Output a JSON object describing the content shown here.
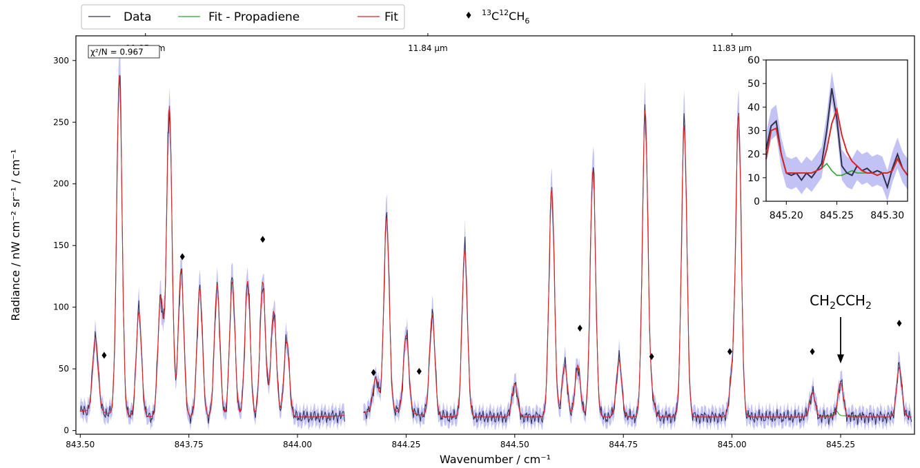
{
  "chart_data": {
    "type": "line",
    "title": "",
    "xlabel": "Wavenumber / cm⁻¹",
    "ylabel": "Radiance / nW cm⁻² sr⁻¹ / cm⁻¹",
    "xlim": [
      843.49,
      845.42
    ],
    "ylim": [
      -3,
      320
    ],
    "x_ticks": [
      843.5,
      843.75,
      844.0,
      844.25,
      844.5,
      844.75,
      845.0,
      845.25
    ],
    "x_tick_labels": [
      "843.50",
      "843.75",
      "844.00",
      "844.25",
      "844.50",
      "844.75",
      "845.00",
      "845.25"
    ],
    "y_ticks": [
      0,
      50,
      100,
      150,
      200,
      250,
      300
    ],
    "top_axis_labels": [
      {
        "x": 843.65,
        "label": "11.85 μm"
      },
      {
        "x": 844.3,
        "label": "11.84 μm"
      },
      {
        "x": 845.0,
        "label": "11.83 μm"
      }
    ],
    "chi2_label": "χ²/N = 0.967",
    "legend": {
      "placement": "top-left",
      "entries": [
        {
          "label": "Data",
          "color": "#2e2e4a"
        },
        {
          "label": "Fit - Propadiene",
          "color": "#2ca02c"
        },
        {
          "label": "Fit",
          "color": "#d62728"
        }
      ]
    },
    "marker_legend": {
      "label_parts": [
        "13",
        "C",
        "12",
        "CH",
        "6"
      ]
    },
    "colors": {
      "data": "#2e2e4a",
      "fit": "#d62728",
      "propadiene": "#2ca02c",
      "band": "#b3b3f2"
    },
    "peaks": [
      [
        843.535,
        60
      ],
      [
        843.59,
        276
      ],
      [
        843.635,
        85
      ],
      [
        843.685,
        97
      ],
      [
        843.705,
        252
      ],
      [
        843.732,
        120
      ],
      [
        843.775,
        105
      ],
      [
        843.815,
        107
      ],
      [
        843.85,
        110
      ],
      [
        843.885,
        110
      ],
      [
        843.92,
        110
      ],
      [
        843.945,
        86
      ],
      [
        843.975,
        62
      ],
      [
        844.18,
        27
      ],
      [
        844.205,
        157
      ],
      [
        844.25,
        63
      ],
      [
        844.31,
        82
      ],
      [
        844.385,
        136
      ],
      [
        844.5,
        27
      ],
      [
        844.585,
        186
      ],
      [
        844.615,
        42
      ],
      [
        844.645,
        42
      ],
      [
        844.68,
        201
      ],
      [
        844.74,
        46
      ],
      [
        844.8,
        248
      ],
      [
        844.815,
        17
      ],
      [
        844.89,
        237
      ],
      [
        845.0,
        30
      ],
      [
        845.015,
        245
      ],
      [
        845.185,
        20
      ],
      [
        845.25,
        28
      ],
      [
        845.385,
        40
      ]
    ],
    "marker_points": [
      [
        843.555,
        61
      ],
      [
        843.735,
        141
      ],
      [
        843.92,
        155
      ],
      [
        844.175,
        47
      ],
      [
        844.28,
        48
      ],
      [
        844.65,
        83
      ],
      [
        844.815,
        60
      ],
      [
        844.995,
        64
      ],
      [
        845.185,
        64
      ],
      [
        845.385,
        87
      ]
    ],
    "annotation": {
      "label_parts": [
        "CH",
        "2",
        "CCH",
        "2"
      ],
      "arrow_x": 845.25,
      "arrow_from_y": 92,
      "arrow_to_y": 55
    },
    "inset": {
      "xlim": [
        845.18,
        845.32
      ],
      "ylim": [
        0,
        60
      ],
      "x_ticks": [
        845.2,
        845.25,
        845.3
      ],
      "x_tick_labels": [
        "845.20",
        "845.25",
        "845.30"
      ],
      "y_ticks": [
        0,
        10,
        20,
        30,
        40,
        50,
        60
      ],
      "data": [
        [
          845.18,
          22
        ],
        [
          845.185,
          32
        ],
        [
          845.19,
          34
        ],
        [
          845.195,
          20
        ],
        [
          845.2,
          12
        ],
        [
          845.205,
          11
        ],
        [
          845.21,
          12
        ],
        [
          845.215,
          9
        ],
        [
          845.22,
          12
        ],
        [
          845.225,
          10
        ],
        [
          845.23,
          13
        ],
        [
          845.235,
          16
        ],
        [
          845.24,
          30
        ],
        [
          845.245,
          48
        ],
        [
          845.25,
          35
        ],
        [
          845.255,
          15
        ],
        [
          845.26,
          12
        ],
        [
          845.265,
          11
        ],
        [
          845.27,
          15
        ],
        [
          845.275,
          13
        ],
        [
          845.28,
          14
        ],
        [
          845.285,
          12
        ],
        [
          845.29,
          13
        ],
        [
          845.295,
          12
        ],
        [
          845.3,
          6
        ],
        [
          845.305,
          14
        ],
        [
          845.31,
          20
        ],
        [
          845.315,
          14
        ],
        [
          845.32,
          11
        ]
      ],
      "fit": [
        [
          845.18,
          18
        ],
        [
          845.185,
          30
        ],
        [
          845.19,
          31
        ],
        [
          845.195,
          20
        ],
        [
          845.2,
          12
        ],
        [
          845.205,
          12
        ],
        [
          845.21,
          12
        ],
        [
          845.215,
          12
        ],
        [
          845.22,
          12
        ],
        [
          845.225,
          12
        ],
        [
          845.23,
          13
        ],
        [
          845.235,
          14
        ],
        [
          845.24,
          22
        ],
        [
          845.245,
          33
        ],
        [
          845.25,
          39
        ],
        [
          845.255,
          28
        ],
        [
          845.26,
          21
        ],
        [
          845.265,
          17
        ],
        [
          845.27,
          15
        ],
        [
          845.275,
          13
        ],
        [
          845.28,
          12
        ],
        [
          845.285,
          12
        ],
        [
          845.29,
          11
        ],
        [
          845.295,
          12
        ],
        [
          845.3,
          12
        ],
        [
          845.305,
          13
        ],
        [
          845.31,
          18
        ],
        [
          845.315,
          14
        ],
        [
          845.32,
          11
        ]
      ],
      "propadiene": [
        [
          845.18,
          18
        ],
        [
          845.185,
          30
        ],
        [
          845.19,
          31
        ],
        [
          845.195,
          20
        ],
        [
          845.2,
          12
        ],
        [
          845.205,
          12
        ],
        [
          845.21,
          12
        ],
        [
          845.215,
          12
        ],
        [
          845.22,
          12
        ],
        [
          845.225,
          12
        ],
        [
          845.23,
          13
        ],
        [
          845.235,
          14
        ],
        [
          845.24,
          16
        ],
        [
          845.245,
          13
        ],
        [
          845.25,
          11
        ],
        [
          845.255,
          11
        ],
        [
          845.26,
          12
        ],
        [
          845.265,
          13
        ],
        [
          845.27,
          12
        ],
        [
          845.275,
          12
        ],
        [
          845.28,
          12
        ],
        [
          845.285,
          12
        ],
        [
          845.29,
          11
        ],
        [
          845.295,
          12
        ],
        [
          845.3,
          12
        ],
        [
          845.305,
          13
        ],
        [
          845.31,
          18
        ],
        [
          845.315,
          14
        ],
        [
          845.32,
          11
        ]
      ]
    }
  }
}
